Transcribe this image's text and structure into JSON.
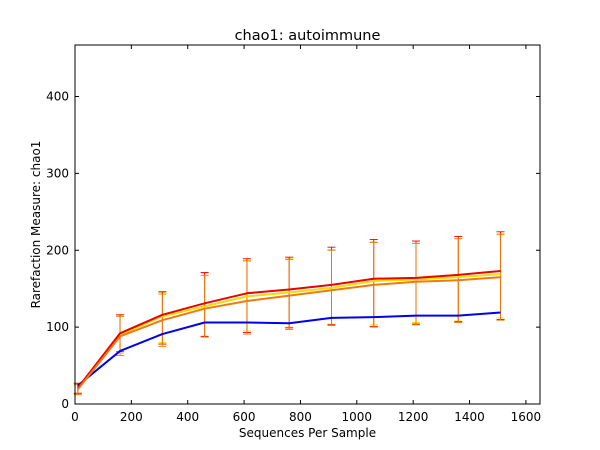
{
  "chart_data": {
    "type": "line",
    "title": "chao1: autoimmune",
    "xlabel": "Sequences Per Sample",
    "ylabel": "Rarefaction Measure: chao1",
    "xlim": [
      0,
      1650
    ],
    "ylim": [
      0,
      467
    ],
    "xticks": [
      0,
      200,
      400,
      600,
      800,
      1000,
      1200,
      1400,
      1600
    ],
    "yticks": [
      0,
      100,
      200,
      300,
      400
    ],
    "grid": false,
    "x": [
      10,
      160,
      310,
      460,
      610,
      760,
      910,
      1060,
      1210,
      1360,
      1510
    ],
    "series": [
      {
        "color": "#e8e00a",
        "values": [
          20,
          90,
          114,
          127,
          140,
          145,
          151,
          160,
          162,
          165,
          169
        ],
        "error_low": [
          13,
          66,
          80,
          88,
          95,
          100,
          104,
          103,
          106,
          108,
          112
        ],
        "error_high": [
          26,
          116,
          145,
          170,
          187,
          189,
          201,
          211,
          209,
          215,
          220
        ],
        "error_color": "#e8e00a"
      },
      {
        "color": "#0000ee",
        "values": [
          24,
          69,
          91,
          106,
          106,
          105,
          112,
          113,
          115,
          115,
          119
        ],
        "error_low": null,
        "error_high": null,
        "error_color": null
      },
      {
        "color": "#ee0000",
        "values": [
          21,
          92,
          116,
          131,
          144,
          149,
          155,
          163,
          164,
          168,
          173
        ],
        "error_low": [
          14,
          68,
          78,
          88,
          93,
          99,
          103,
          101,
          104,
          107,
          110
        ],
        "error_high": [
          27,
          116,
          146,
          171,
          189,
          191,
          204,
          214,
          212,
          218,
          224
        ],
        "error_color": "#ee0000"
      },
      {
        "color": "#ef7a10",
        "values": [
          19,
          88,
          109,
          124,
          134,
          141,
          148,
          155,
          159,
          161,
          165
        ],
        "error_low": [
          12,
          63,
          75,
          87,
          91,
          97,
          102,
          100,
          103,
          106,
          109
        ],
        "error_high": [
          25,
          114,
          143,
          167,
          186,
          188,
          200,
          210,
          209,
          215,
          221
        ],
        "error_color": "#ef7a10"
      }
    ]
  }
}
